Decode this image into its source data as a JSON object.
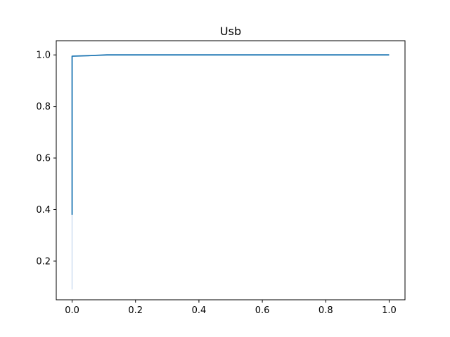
{
  "chart_data": {
    "type": "line",
    "title": "Usb",
    "xlabel": "",
    "ylabel": "",
    "xlim": [
      -0.05,
      1.05
    ],
    "ylim": [
      0.05,
      1.055
    ],
    "xticks": [
      0.0,
      0.2,
      0.4,
      0.6,
      0.8,
      1.0
    ],
    "xtick_labels": [
      "0.0",
      "0.2",
      "0.4",
      "0.6",
      "0.8",
      "1.0"
    ],
    "yticks": [
      0.2,
      0.4,
      0.6,
      0.8,
      1.0
    ],
    "ytick_labels": [
      "0.2",
      "0.4",
      "0.6",
      "0.8",
      "1.0"
    ],
    "grid": false,
    "series": [
      {
        "color": "#1f77b4",
        "x": [
          0.0,
          0.0,
          0.0,
          0.0,
          0.05,
          0.11,
          0.2,
          0.4,
          0.6,
          0.8,
          1.0
        ],
        "y": [
          0.38,
          0.68,
          0.9,
          0.995,
          0.997,
          1.0,
          1.0,
          1.0,
          1.0,
          1.0,
          1.0
        ]
      }
    ],
    "band": {
      "color": "#aec7e8",
      "x": [
        0.0,
        0.0
      ],
      "y_low": [
        0.09,
        0.38
      ],
      "y_high": [
        0.38,
        0.38
      ]
    }
  }
}
